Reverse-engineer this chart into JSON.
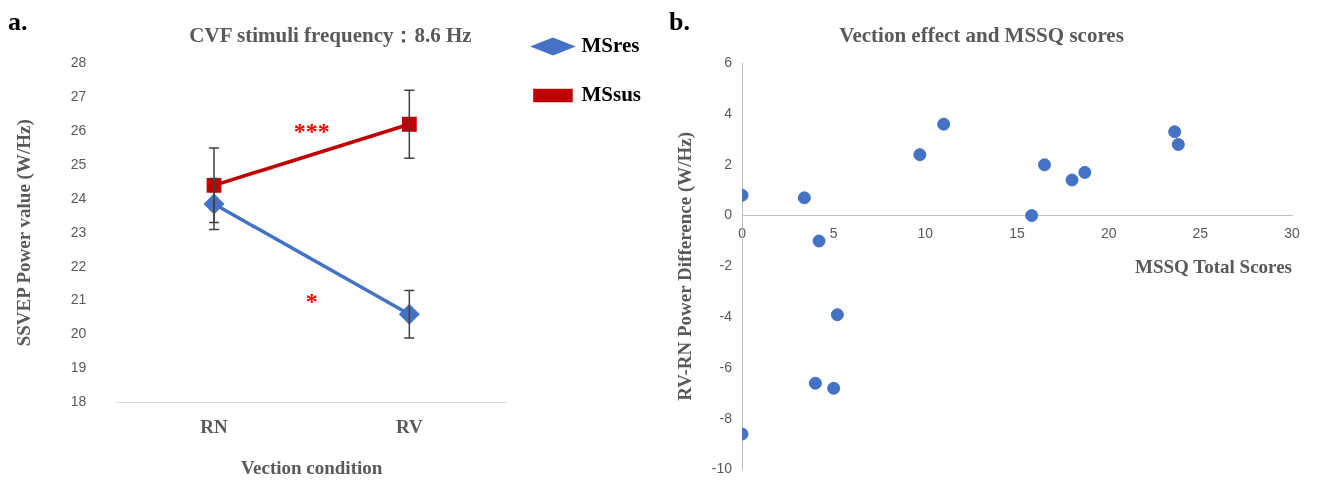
{
  "chart_data": [
    {
      "type": "line",
      "title": "CVF stimuli frequency：8.6 Hz",
      "xlabel": "Vection condition",
      "ylabel": "SSVEP Power value (W/Hz)",
      "categories": [
        "RN",
        "RV"
      ],
      "series": [
        {
          "name": "MSres",
          "color": "#4472c4",
          "marker": "diamond",
          "values": [
            23.85,
            20.6
          ],
          "errors": [
            0.75,
            0.7
          ]
        },
        {
          "name": "MSsus",
          "color": "#c00000",
          "marker": "square",
          "values": [
            24.4,
            26.2
          ],
          "errors": [
            1.1,
            1.0
          ]
        }
      ],
      "ylim": [
        18,
        28
      ],
      "yticks": [
        18,
        19,
        20,
        21,
        22,
        23,
        24,
        25,
        26,
        27,
        28
      ],
      "grid": false,
      "legend": "right",
      "annotations": [
        "a.",
        "***",
        "*"
      ]
    },
    {
      "type": "scatter",
      "title": "Vection effect and MSSQ scores",
      "xlabel": "MSSQ Total Scores",
      "ylabel": "RV-RN Power Difference (W/Hz)",
      "x": [
        0,
        3.4,
        4.2,
        9.7,
        11.0,
        15.8,
        16.5,
        18.0,
        18.7,
        23.6,
        23.8,
        5.2,
        4.0,
        5.0,
        0
      ],
      "series": [
        {
          "color": "#4472c4",
          "values": [
            0.8,
            0.7,
            -1.0,
            2.4,
            3.6,
            0.0,
            2.0,
            1.4,
            1.7,
            3.3,
            2.8,
            -3.9,
            -6.6,
            -6.8,
            -8.6
          ]
        }
      ],
      "xlim": [
        0,
        30
      ],
      "xticks": [
        0,
        5,
        10,
        15,
        20,
        25,
        30
      ],
      "ylim": [
        -10,
        6
      ],
      "yticks": [
        -10,
        -8,
        -6,
        -4,
        -2,
        0,
        2,
        4,
        6
      ],
      "grid": false,
      "legend": false,
      "marker": "circle",
      "annotations": [
        "b."
      ]
    }
  ]
}
